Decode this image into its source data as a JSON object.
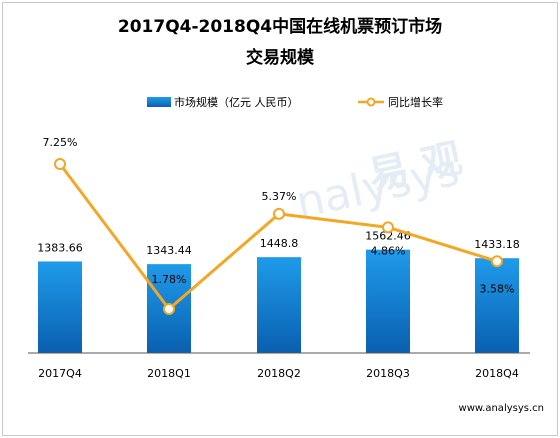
{
  "chart_data": {
    "type": "bar",
    "title_line1": "2017Q4-2018Q4中国在线机票预订市场",
    "title_line2": "交易规模",
    "categories": [
      "2017Q4",
      "2018Q1",
      "2018Q2",
      "2018Q3",
      "2018Q4"
    ],
    "series": [
      {
        "name": "市场规模（亿元 人民币）",
        "type": "bar",
        "axis": "left",
        "values": [
          1383.66,
          1343.44,
          1448.8,
          1562.46,
          1433.18
        ],
        "labels": [
          "1383.66",
          "1343.44",
          "1448.8",
          "1562.46",
          "1433.18"
        ]
      },
      {
        "name": "同比增长率",
        "type": "line",
        "axis": "right",
        "values": [
          7.25,
          1.78,
          5.37,
          4.86,
          3.58
        ],
        "labels": [
          "7.25%",
          "1.78%",
          "5.37%",
          "4.86%",
          "3.58%"
        ]
      }
    ],
    "colors": {
      "bar_top": "#1f9bea",
      "bar_bottom": "#0a5fb0",
      "line": "#f5a623"
    },
    "legend_position": "top",
    "grid": false
  },
  "source": "www.analysys.cn",
  "watermark": "Analysys 易观"
}
